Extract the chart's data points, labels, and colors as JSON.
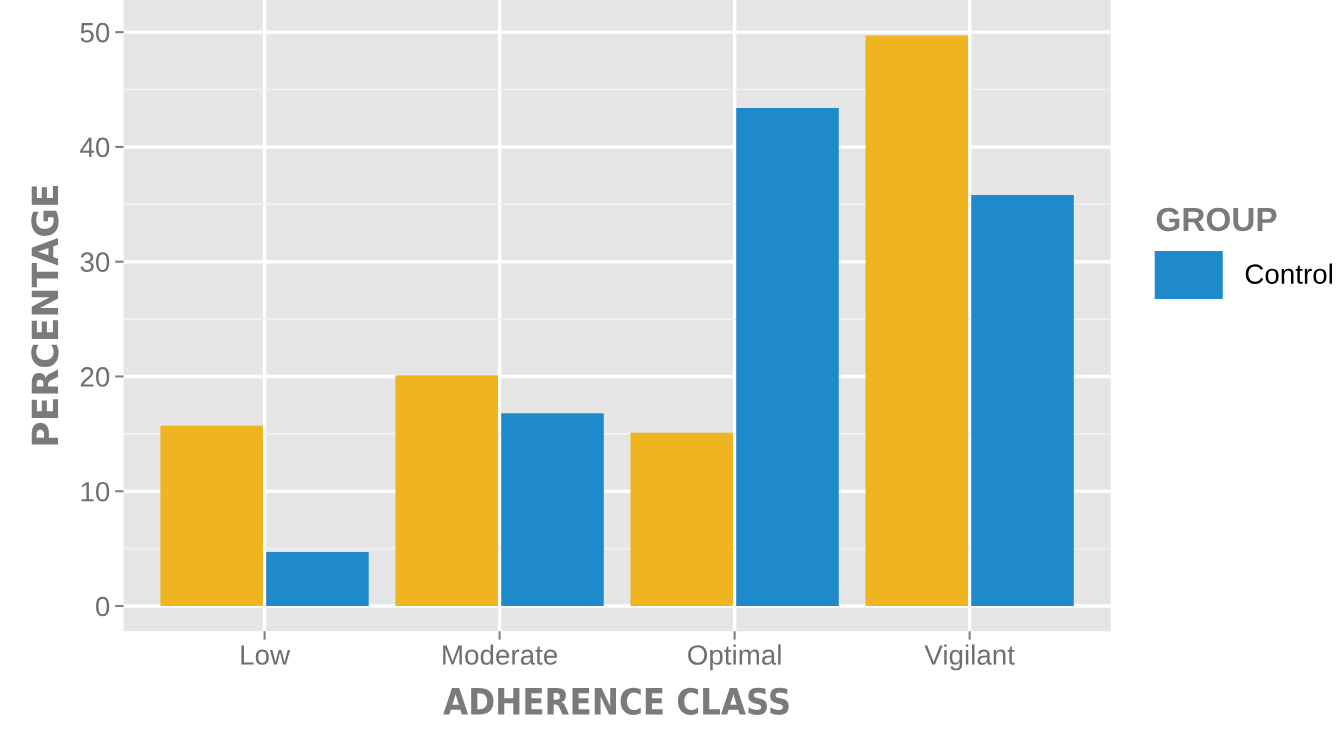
{
  "chart_data": {
    "type": "bar",
    "xlabel": "ADHERENCE CLASS",
    "ylabel": "PERCENTAGE",
    "legend_title": "GROUP",
    "categories": [
      "Low",
      "Moderate",
      "Optimal",
      "Vigilant"
    ],
    "series": [
      {
        "color": "#efb520",
        "values": [
          15.7,
          20.1,
          15.1,
          49.7
        ]
      },
      {
        "name": "Control",
        "color": "#1f8acb",
        "values": [
          4.7,
          16.8,
          43.4,
          35.8
        ]
      }
    ],
    "ylim": [
      -2.2,
      52.8
    ],
    "yticks": [
      0,
      10,
      20,
      30,
      40,
      50
    ],
    "grid": true,
    "legend": "right"
  }
}
